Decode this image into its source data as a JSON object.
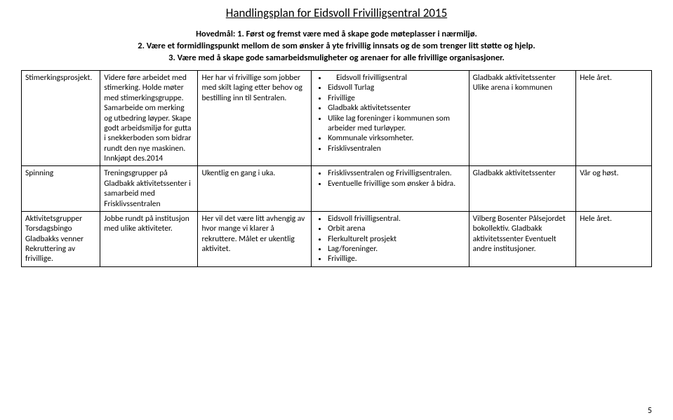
{
  "header_title": "Handlingsplan for Eidsvoll Frivilligsentral 2015",
  "sub1": "Hovedmål: 1. Først og fremst være med å skape gode møteplasser i nærmiljø.",
  "sub2": "2. Være et formidlingspunkt mellom de som ønsker å yte frivillig innsats og de som trenger litt støtte og hjelp.",
  "sub3": "3. Være med å skape gode samarbeidsmuligheter og arenaer for alle frivillige organisasjoner.",
  "rows": [
    {
      "c1": "Stimerkingsprosjekt.",
      "c2": "Videre føre arbeidet med stimerking. Holde møter med stimerkingsgruppe. Samarbeide om merking og utbedring løyper. Skape godt arbeidsmiljø for gutta i snekkerboden som bidrar rundt den nye maskinen. Innkjøpt des.2014",
      "c3": "Her har vi frivillige som jobber med skilt laging etter behov og bestilling inn til Sentralen.",
      "c4_items": [
        "Eidsvoll frivilligsentral",
        "Eidsvoll Turlag",
        "Frivillige",
        "Gladbakk aktivitetssenter",
        "Ulike lag foreninger i kommunen som arbeider med turløyper.",
        "Kommunale virksomheter.",
        "Frisklivsentralen"
      ],
      "c4_first_indent": true,
      "c5": "Gladbakk aktivitetssenter Ulike arena i kommunen",
      "c6": "Hele året."
    },
    {
      "c1": "Spinning",
      "c2": "Treningsgrupper på Gladbakk aktivitetssenter i samarbeid med Frisklivssentralen",
      "c3": "Ukentlig en gang i uka.",
      "c4_items": [
        "Frisklivssentralen og Frivilligsentralen.",
        "Eventuelle frivillige som ønsker å bidra."
      ],
      "c4_first_indent": false,
      "c5": "Gladbakk aktivitetssenter",
      "c6": "Vår og høst."
    },
    {
      "c1": "Aktivitetsgrupper Torsdagsbingo Gladbakks venner Rekruttering av frivillige.",
      "c2": "Jobbe rundt på institusjon med ulike aktiviteter.",
      "c3": "Her vil det være litt avhengig av hvor mange vi klarer å rekruttere. Målet er ukentlig aktivitet.",
      "c4_items": [
        "Eidsvoll frivilligsentral.",
        "Orbit arena",
        "Flerkulturelt prosjekt",
        "Lag/foreninger.",
        "Frivillige."
      ],
      "c4_first_indent": false,
      "c5": "Vilberg Bosenter Pålsejordet bokollektiv. Gladbakk aktivitetssenter Eventuelt andre institusjoner.",
      "c6": "Hele året."
    }
  ],
  "page_number": "5"
}
